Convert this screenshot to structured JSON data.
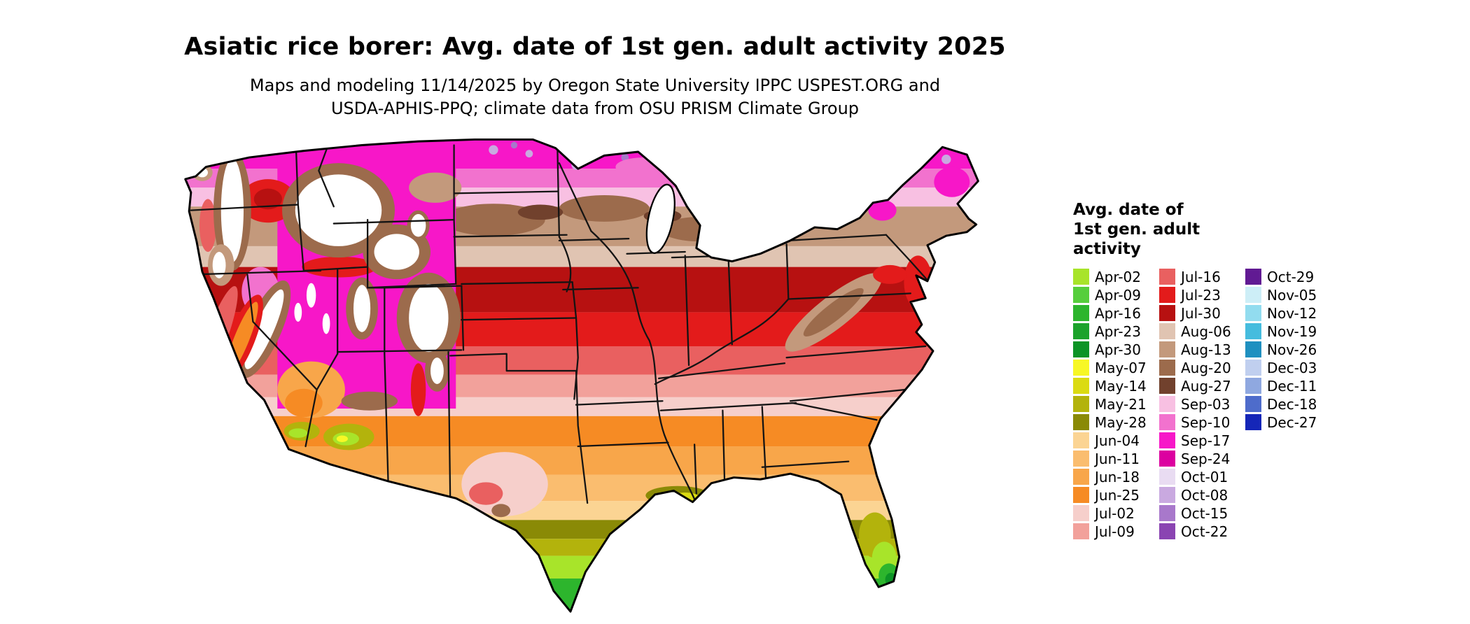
{
  "header": {
    "title": "Asiatic rice borer: Avg. date of 1st gen. adult activity 2025",
    "subtitle_line1": "Maps and modeling 11/14/2025 by Oregon State University IPPC USPEST.ORG and",
    "subtitle_line2": "USDA-APHIS-PPQ; climate data from OSU PRISM Climate Group"
  },
  "map": {
    "type": "raster-choropleth",
    "region": "contiguous United States"
  },
  "legend": {
    "title_lines": [
      "Avg. date of",
      "1st gen. adult",
      "activity"
    ],
    "columns": [
      {
        "entries": [
          {
            "label": "Apr-02",
            "color": "#A8E42A"
          },
          {
            "label": "Apr-09",
            "color": "#56CE3C"
          },
          {
            "label": "Apr-16",
            "color": "#2DB52D"
          },
          {
            "label": "Apr-23",
            "color": "#1CA32B"
          },
          {
            "label": "Apr-30",
            "color": "#0D9426"
          },
          {
            "label": "May-07",
            "color": "#F7F725"
          },
          {
            "label": "May-14",
            "color": "#DBDB12"
          },
          {
            "label": "May-21",
            "color": "#B3B30C"
          },
          {
            "label": "May-28",
            "color": "#8A8A06"
          },
          {
            "label": "Jun-04",
            "color": "#FBD493"
          },
          {
            "label": "Jun-11",
            "color": "#FABD6F"
          },
          {
            "label": "Jun-18",
            "color": "#F8A64A"
          },
          {
            "label": "Jun-25",
            "color": "#F68B24"
          },
          {
            "label": "Jul-02",
            "color": "#F6CFCB"
          },
          {
            "label": "Jul-09",
            "color": "#F2A19B"
          }
        ]
      },
      {
        "entries": [
          {
            "label": "Jul-16",
            "color": "#E96060"
          },
          {
            "label": "Jul-23",
            "color": "#E31B1B"
          },
          {
            "label": "Jul-30",
            "color": "#B71111"
          },
          {
            "label": "Aug-06",
            "color": "#E0C4B2"
          },
          {
            "label": "Aug-13",
            "color": "#C3997C"
          },
          {
            "label": "Aug-20",
            "color": "#9C6B4C"
          },
          {
            "label": "Aug-27",
            "color": "#71412D"
          },
          {
            "label": "Sep-03",
            "color": "#F8C0E2"
          },
          {
            "label": "Sep-10",
            "color": "#F272CE"
          },
          {
            "label": "Sep-17",
            "color": "#F717C8"
          },
          {
            "label": "Sep-24",
            "color": "#DC00A0"
          },
          {
            "label": "Oct-01",
            "color": "#E9DCF2"
          },
          {
            "label": "Oct-08",
            "color": "#C9A9E0"
          },
          {
            "label": "Oct-15",
            "color": "#A878CB"
          },
          {
            "label": "Oct-22",
            "color": "#8A44B2"
          }
        ]
      },
      {
        "entries": [
          {
            "label": "Oct-29",
            "color": "#611A93"
          },
          {
            "label": "Nov-05",
            "color": "#CDEEF7"
          },
          {
            "label": "Nov-12",
            "color": "#92DCEF"
          },
          {
            "label": "Nov-19",
            "color": "#45BCDE"
          },
          {
            "label": "Nov-26",
            "color": "#1F90C0"
          },
          {
            "label": "Dec-03",
            "color": "#C0CFEF"
          },
          {
            "label": "Dec-11",
            "color": "#8FA8E0"
          },
          {
            "label": "Dec-18",
            "color": "#4E6CCB"
          },
          {
            "label": "Dec-27",
            "color": "#1526B8"
          }
        ]
      }
    ]
  }
}
